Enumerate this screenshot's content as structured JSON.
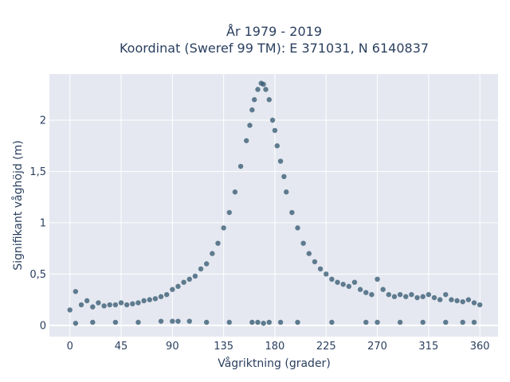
{
  "chart_data": {
    "type": "scatter",
    "title_lines": [
      "År 1979 - 2019",
      "Koordinat (Sweref 99 TM): E 371031, N 6140837"
    ],
    "xlabel": "Vågriktning (grader)",
    "ylabel": "Signifikant våghöjd (m)",
    "xlim": [
      -18,
      376
    ],
    "ylim": [
      -0.11,
      2.45
    ],
    "x_ticks": [
      0,
      45,
      90,
      135,
      180,
      225,
      270,
      315,
      360
    ],
    "x_tick_labels": [
      "0",
      "45",
      "90",
      "135",
      "180",
      "225",
      "270",
      "315",
      "360"
    ],
    "y_ticks": [
      0,
      0.5,
      1,
      1.5,
      2
    ],
    "y_tick_labels": [
      "0",
      "0,5",
      "1",
      "1,5",
      "2"
    ],
    "grid": true,
    "legend": "none",
    "marker_color": "#30566e",
    "background_color": "#e5e8f0",
    "series": [
      {
        "x": [
          0,
          5,
          10,
          15,
          20,
          25,
          30,
          35,
          40,
          45,
          50,
          55,
          60,
          65,
          70,
          75,
          80,
          85,
          90,
          95,
          100,
          105,
          110,
          115,
          120,
          125,
          130,
          135,
          140,
          145,
          150,
          155,
          158,
          160,
          162,
          165,
          168,
          170,
          172,
          175,
          178,
          180,
          182,
          185,
          188,
          190,
          195,
          200,
          205,
          210,
          215,
          220,
          225,
          230,
          235,
          240,
          245,
          250,
          255,
          260,
          265,
          270,
          275,
          280,
          285,
          290,
          295,
          300,
          305,
          310,
          315,
          320,
          325,
          330,
          335,
          340,
          345,
          350,
          355,
          360,
          5,
          20,
          40,
          60,
          80,
          90,
          95,
          105,
          120,
          140,
          160,
          165,
          170,
          175,
          185,
          200,
          230,
          260,
          270,
          290,
          310,
          330,
          345,
          355
        ],
        "y": [
          0.15,
          0.33,
          0.2,
          0.24,
          0.18,
          0.22,
          0.19,
          0.2,
          0.2,
          0.22,
          0.2,
          0.21,
          0.22,
          0.24,
          0.25,
          0.26,
          0.28,
          0.3,
          0.35,
          0.38,
          0.42,
          0.45,
          0.48,
          0.55,
          0.6,
          0.7,
          0.8,
          0.95,
          1.1,
          1.3,
          1.55,
          1.8,
          1.95,
          2.1,
          2.2,
          2.3,
          2.36,
          2.35,
          2.3,
          2.2,
          2.0,
          1.9,
          1.75,
          1.6,
          1.45,
          1.3,
          1.1,
          0.95,
          0.8,
          0.7,
          0.62,
          0.55,
          0.5,
          0.45,
          0.42,
          0.4,
          0.38,
          0.42,
          0.35,
          0.32,
          0.3,
          0.45,
          0.35,
          0.3,
          0.28,
          0.3,
          0.28,
          0.3,
          0.27,
          0.28,
          0.3,
          0.27,
          0.25,
          0.3,
          0.25,
          0.24,
          0.23,
          0.25,
          0.22,
          0.2,
          0.02,
          0.03,
          0.03,
          0.03,
          0.04,
          0.04,
          0.04,
          0.04,
          0.03,
          0.03,
          0.03,
          0.03,
          0.02,
          0.03,
          0.03,
          0.03,
          0.03,
          0.03,
          0.03,
          0.03,
          0.03,
          0.03,
          0.03,
          0.03
        ]
      }
    ]
  }
}
